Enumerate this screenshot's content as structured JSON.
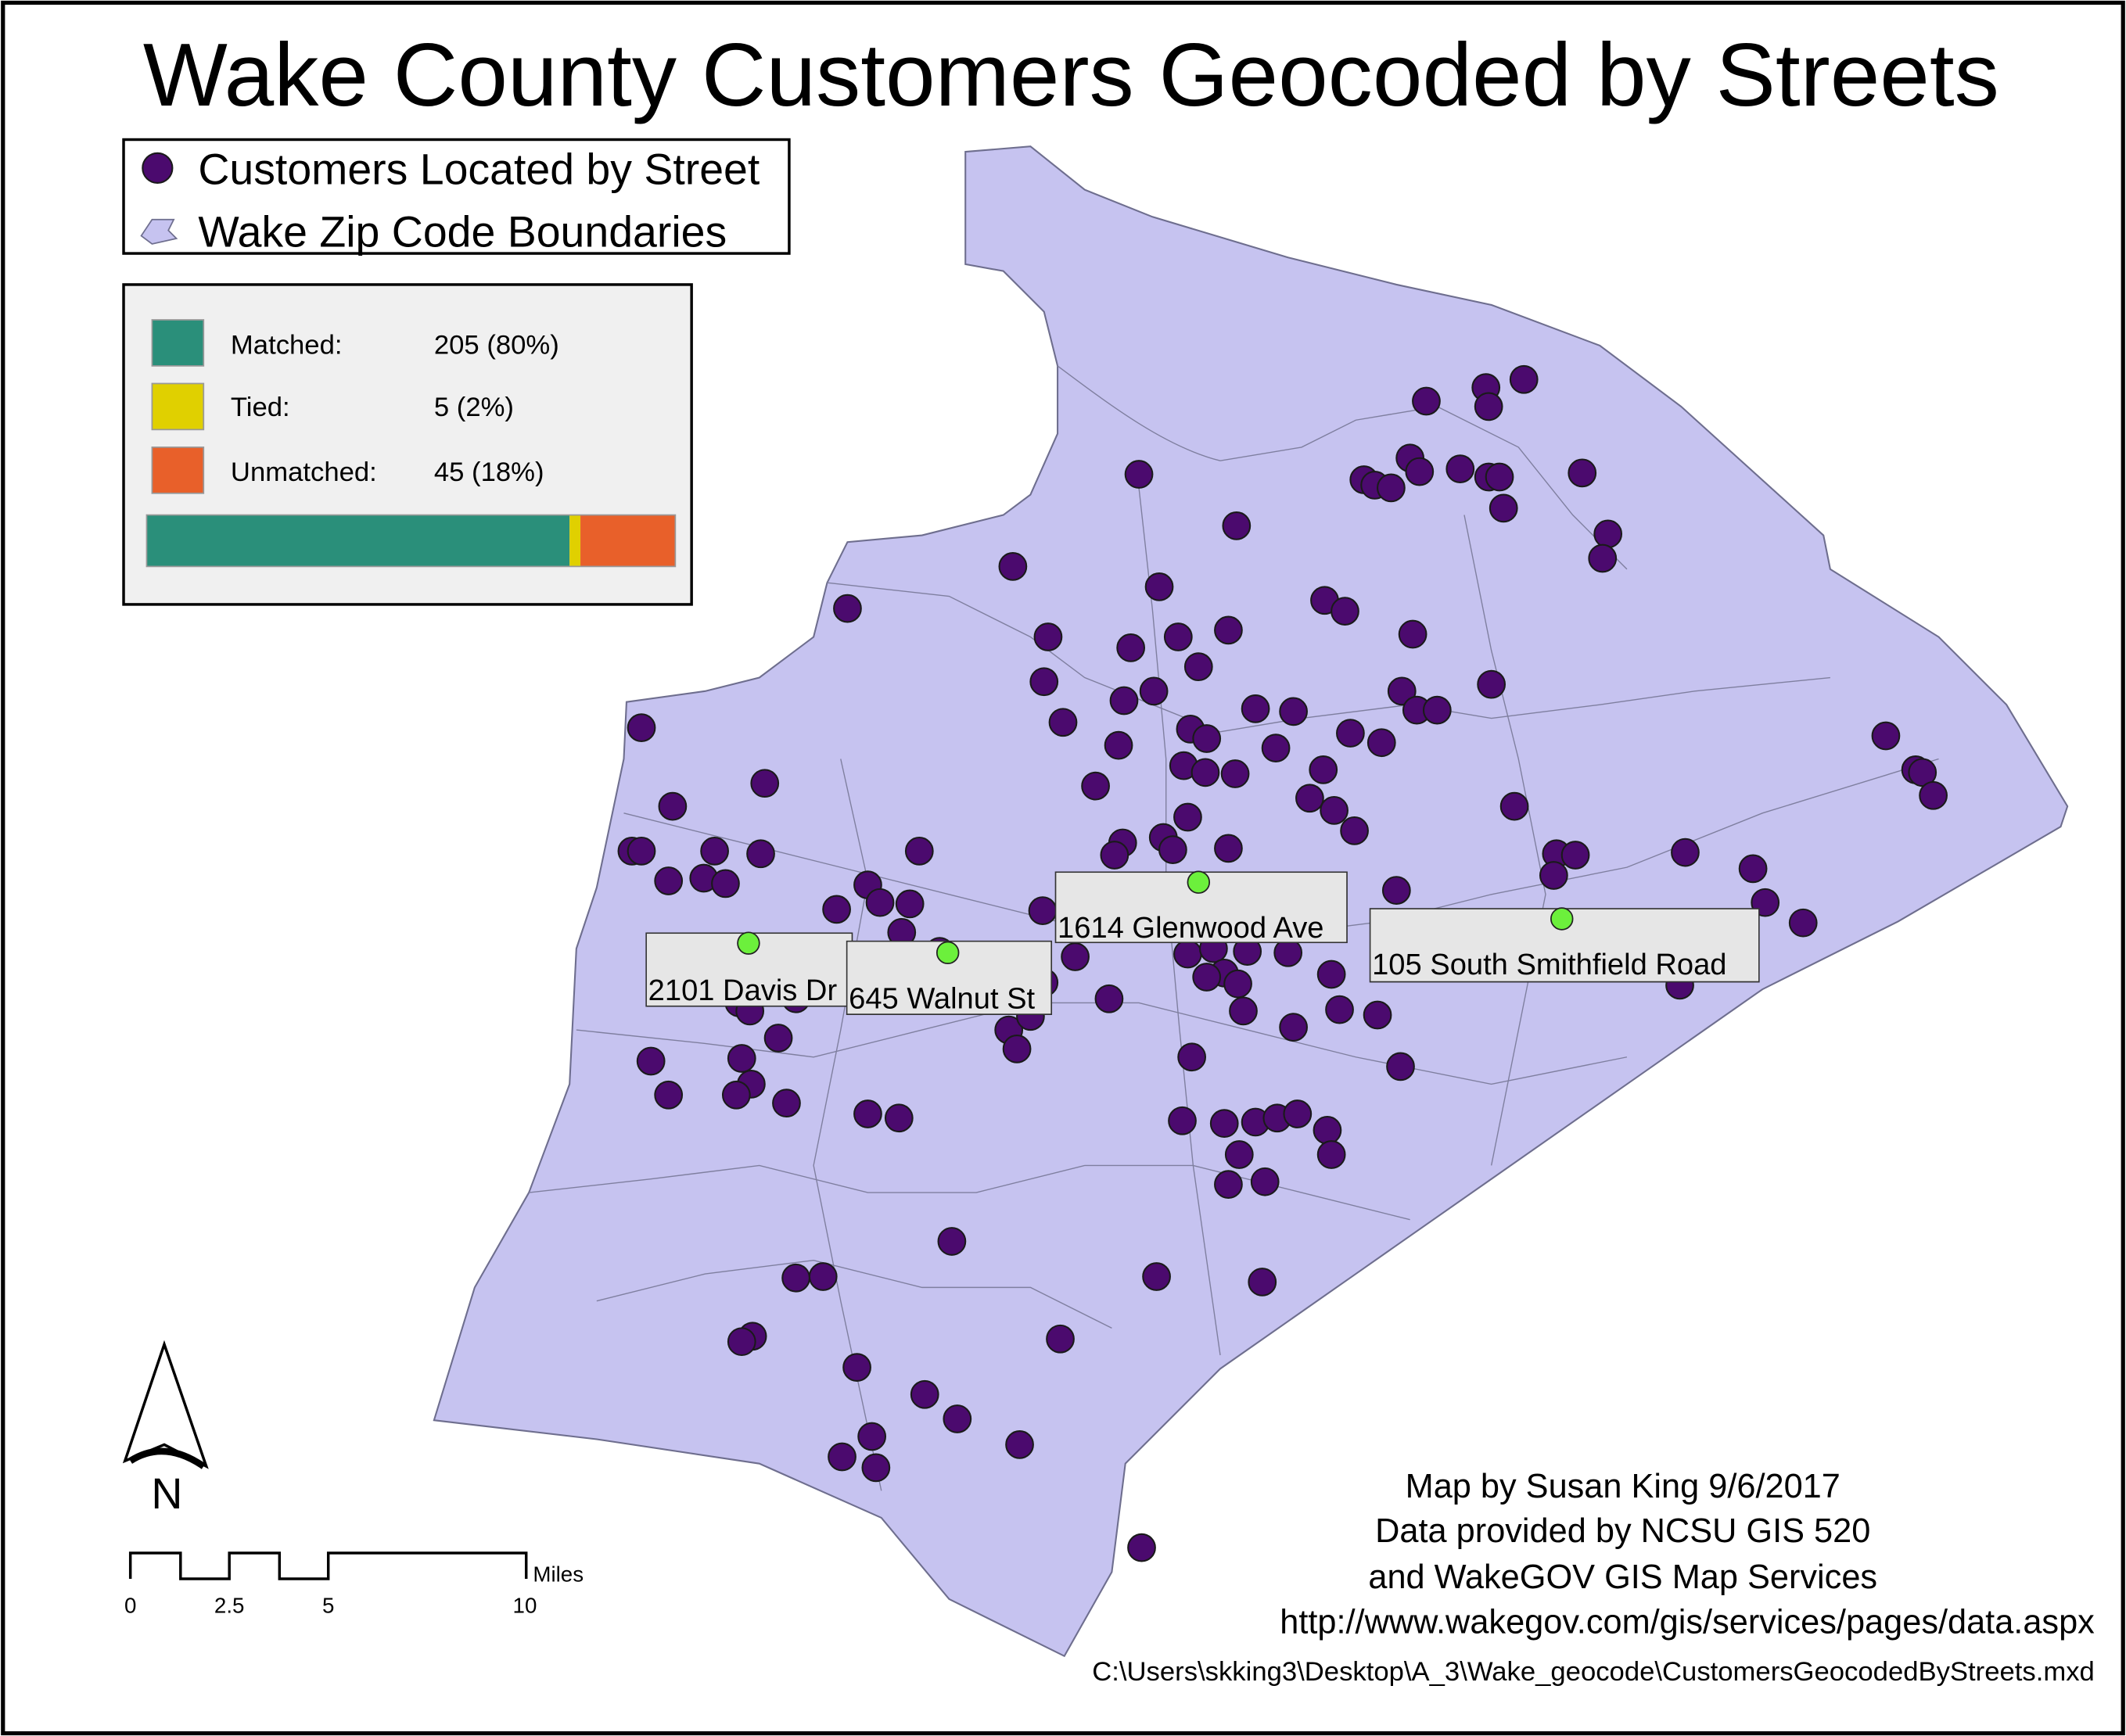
{
  "title": "Wake County Customers Geocoded by Streets",
  "legend": [
    "Customers Located by Street",
    "Wake Zip Code Boundaries"
  ],
  "match_stats": [
    {
      "label": "Matched:",
      "text": "205 (80%)"
    },
    {
      "label": "Tied:",
      "text": "5 (2%)"
    },
    {
      "label": "Unmatched:",
      "text": "45 (18%)"
    }
  ],
  "address_labels": [
    "2101 Davis Dr",
    "645 Walnut St",
    "1614 Glenwood Ave",
    "105 South Smithfield Road"
  ],
  "north_label": "N",
  "scale_bar": {
    "unit": "Miles",
    "labels": [
      "0",
      "2.5",
      "5",
      "10"
    ]
  },
  "credits": [
    "Map by Susan King 9/6/2017",
    "Data provided by NCSU GIS 520",
    "and WakeGOV GIS Map Services",
    "http://www.wakegov.com/gis/services/pages/data.aspx"
  ],
  "file_path": "C:\\Users\\skking3\\Desktop\\A_3\\Wake_geocode\\CustomersGeocodedByStreets.mxd"
}
